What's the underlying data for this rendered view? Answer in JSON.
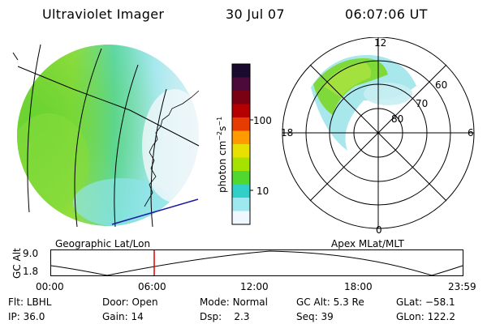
{
  "header": {
    "title": "Ultraviolet Imager",
    "date": "30 Jul 07",
    "time": "06:07:06 UT"
  },
  "geo_panel": {
    "label": "Geographic Lat/Lon"
  },
  "colorbar": {
    "unit": "photon cm",
    "unit_exp1": "−2",
    "unit_mid": "s",
    "unit_exp2": "−1",
    "ticks": [
      "100",
      "10"
    ],
    "colors_top_to_bottom": [
      "#1a0a2e",
      "#4b0a3a",
      "#7a0014",
      "#b40000",
      "#e63c00",
      "#ff9a00",
      "#e8e000",
      "#a6e200",
      "#50d830",
      "#30d0c8",
      "#9ee8f0",
      "#f0f8ff"
    ]
  },
  "polar_panel": {
    "label": "Apex MLat/MLT",
    "mlt_labels": {
      "top": "12",
      "bottom": "0",
      "left": "18",
      "right": "6"
    },
    "lat_labels": [
      "60",
      "70",
      "80"
    ]
  },
  "timeline": {
    "ylabel": "GC Alt",
    "y_ticks": [
      "9.0",
      "1.8"
    ],
    "x_ticks": [
      "00:00",
      "06:00",
      "12:00",
      "18:00",
      "23:59"
    ],
    "current_marker": "06:07:06",
    "marker_color": "#e00000"
  },
  "info": {
    "flt_label": "Flt:",
    "flt_value": "LBHL",
    "ip_label": "IP:",
    "ip_value": "36.0",
    "door_label": "Door:",
    "door_value": "Open",
    "gain_label": "Gain:",
    "gain_value": "14",
    "mode_label": "Mode:",
    "mode_value": "Normal",
    "dsp_label": "Dsp:",
    "dsp_value": "2.3",
    "gcalt_label": "GC Alt:",
    "gcalt_value": "5.3 Re",
    "seq_label": "Seq:",
    "seq_value": "39",
    "glat_label": "GLat:",
    "glat_value": "−58.1",
    "glon_label": "GLon:",
    "glon_value": "122.2"
  }
}
